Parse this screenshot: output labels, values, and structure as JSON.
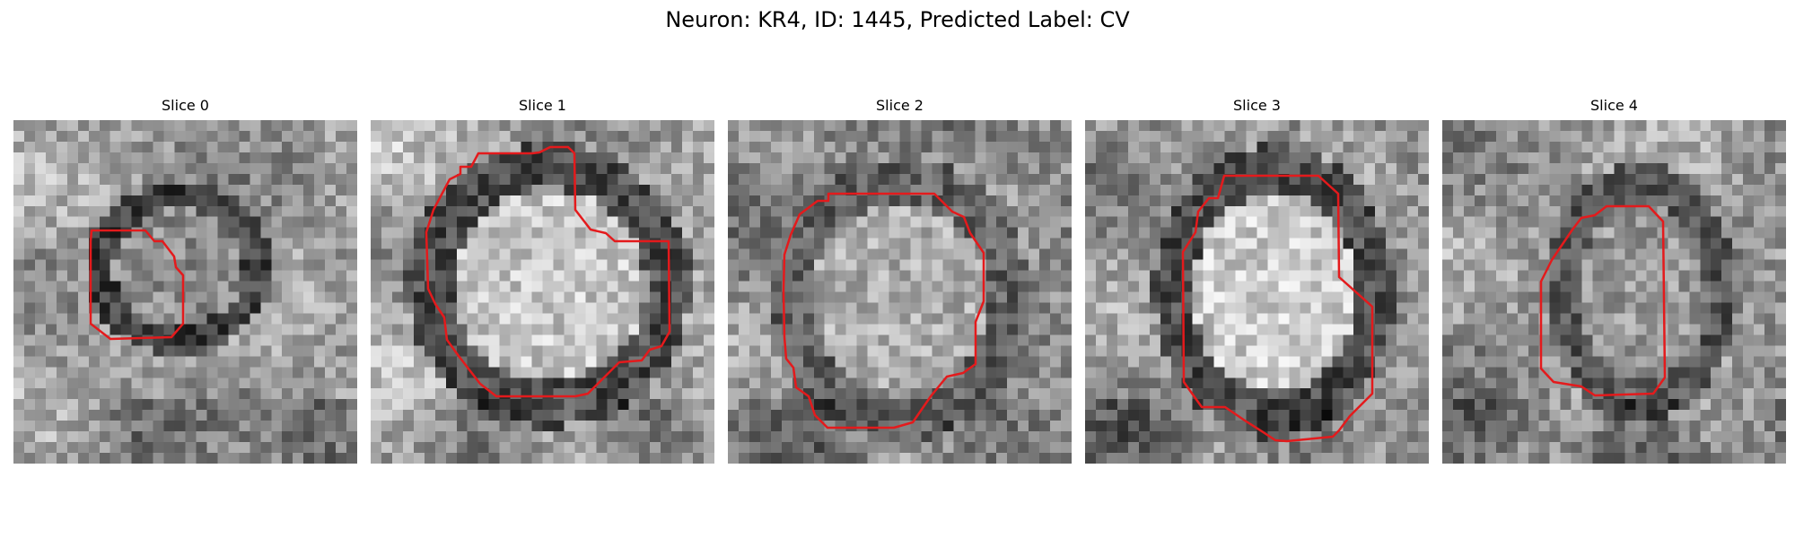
{
  "figure": {
    "title": "Neuron: KR4, ID: 1445, Predicted Label: CV"
  },
  "contour_color": "#e41a1c",
  "slices": [
    {
      "title": "Slice 0"
    },
    {
      "title": "Slice 1"
    },
    {
      "title": "Slice 2"
    },
    {
      "title": "Slice 3"
    },
    {
      "title": "Slice 4"
    }
  ]
}
